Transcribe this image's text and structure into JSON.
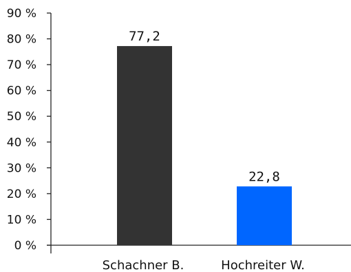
{
  "chart_data": {
    "type": "bar",
    "title": "",
    "xlabel": "",
    "ylabel": "",
    "categories": [
      "Schachner B.",
      "Hochreiter W."
    ],
    "values": [
      77.2,
      22.8
    ],
    "data_labels": [
      "77,2",
      "22,8"
    ],
    "colors": [
      "#333333",
      "#0066ff"
    ],
    "ylim": [
      0,
      90
    ],
    "yticks": [
      0,
      10,
      20,
      30,
      40,
      50,
      60,
      70,
      80,
      90
    ],
    "ytick_labels": [
      "0 %",
      "10 %",
      "20 %",
      "30 %",
      "40 %",
      "50 %",
      "60 %",
      "70 %",
      "80 %",
      "90 %"
    ],
    "grid": false,
    "legend": "none"
  }
}
